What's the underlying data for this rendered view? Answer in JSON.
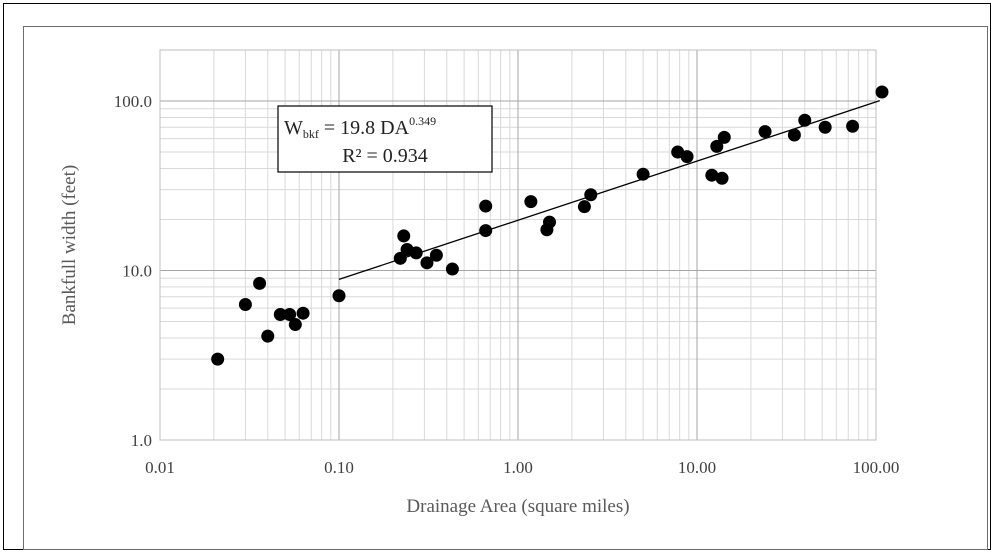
{
  "chart_data": {
    "type": "scatter",
    "title": "",
    "xlabel": "Drainage Area (square miles)",
    "ylabel": "Bankfull width (feet)",
    "x_scale": "log",
    "y_scale": "log",
    "xlim": [
      0.01,
      100
    ],
    "ylim": [
      1,
      200
    ],
    "x_ticks": [
      "0.01",
      "0.10",
      "1.00",
      "10.00",
      "100.00"
    ],
    "y_ticks": [
      "1.0",
      "10.0",
      "100.0"
    ],
    "grid": true,
    "legend": "none",
    "marker_color": "#000000",
    "trendline": {
      "type": "power",
      "coefficient": 19.8,
      "exponent": 0.349,
      "x_range": [
        0.1,
        105
      ]
    },
    "annotation": {
      "w_symbol": "W",
      "w_sub": "bkf",
      "eq_mid": " = 19.8 DA",
      "exponent_text": "0.349",
      "r2_text": "R² = 0.934"
    },
    "points": [
      {
        "x": 0.021,
        "y": 3.0
      },
      {
        "x": 0.03,
        "y": 6.3
      },
      {
        "x": 0.036,
        "y": 8.4
      },
      {
        "x": 0.04,
        "y": 4.1
      },
      {
        "x": 0.047,
        "y": 5.5
      },
      {
        "x": 0.053,
        "y": 5.5
      },
      {
        "x": 0.057,
        "y": 4.8
      },
      {
        "x": 0.063,
        "y": 5.6
      },
      {
        "x": 0.1,
        "y": 7.1
      },
      {
        "x": 0.22,
        "y": 11.8
      },
      {
        "x": 0.23,
        "y": 16.0
      },
      {
        "x": 0.24,
        "y": 13.3
      },
      {
        "x": 0.27,
        "y": 12.7
      },
      {
        "x": 0.31,
        "y": 11.1
      },
      {
        "x": 0.35,
        "y": 12.3
      },
      {
        "x": 0.43,
        "y": 10.2
      },
      {
        "x": 0.66,
        "y": 17.2
      },
      {
        "x": 0.66,
        "y": 24.0
      },
      {
        "x": 1.18,
        "y": 25.5
      },
      {
        "x": 1.45,
        "y": 17.4
      },
      {
        "x": 1.5,
        "y": 19.3
      },
      {
        "x": 2.35,
        "y": 23.8
      },
      {
        "x": 2.55,
        "y": 28.0
      },
      {
        "x": 5.0,
        "y": 37.0
      },
      {
        "x": 7.8,
        "y": 50.0
      },
      {
        "x": 8.8,
        "y": 47.0
      },
      {
        "x": 12.1,
        "y": 36.5
      },
      {
        "x": 12.9,
        "y": 54.0
      },
      {
        "x": 13.8,
        "y": 35.0
      },
      {
        "x": 14.2,
        "y": 61.0
      },
      {
        "x": 24.0,
        "y": 66.0
      },
      {
        "x": 35.0,
        "y": 63.0
      },
      {
        "x": 40.0,
        "y": 77.0
      },
      {
        "x": 52.0,
        "y": 70.0
      },
      {
        "x": 74.0,
        "y": 71.0
      },
      {
        "x": 108.0,
        "y": 113.0
      }
    ]
  }
}
